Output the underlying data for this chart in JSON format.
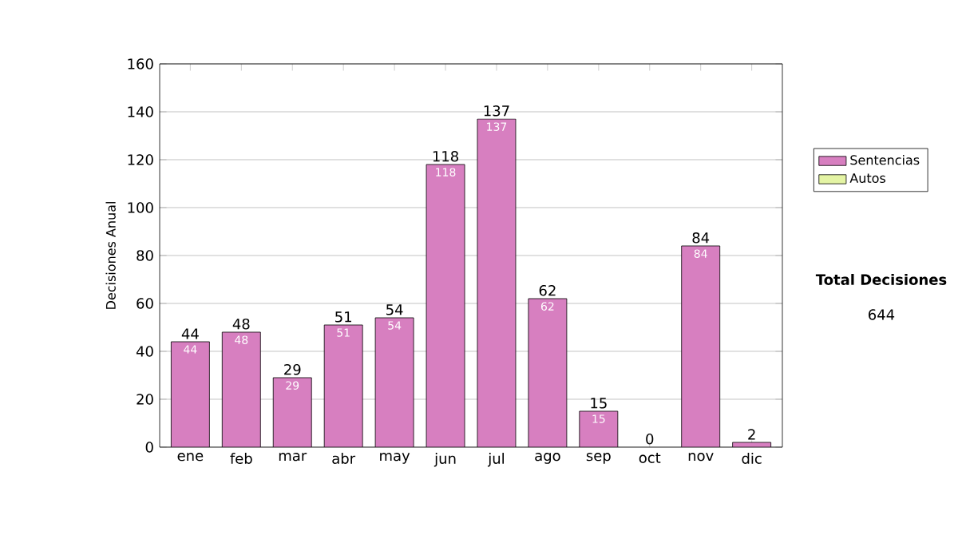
{
  "chart_data": {
    "type": "bar",
    "stacked": true,
    "ylabel": "Decisiones Anual",
    "categories": [
      "ene",
      "feb",
      "mar",
      "abr",
      "may",
      "jun",
      "jul",
      "ago",
      "sep",
      "oct",
      "nov",
      "dic"
    ],
    "series": [
      {
        "name": "Sentencias",
        "color": "#d77fc0",
        "values": [
          44,
          48,
          29,
          51,
          54,
          118,
          137,
          62,
          15,
          0,
          84,
          2
        ],
        "value_labels": [
          "44",
          "48",
          "29",
          "51",
          "54",
          "118",
          "137",
          "62",
          "15",
          null,
          "84",
          null
        ]
      },
      {
        "name": "Autos",
        "color": "#e4f4a4",
        "values": [
          0,
          0,
          0,
          0,
          0,
          0,
          0,
          0,
          0,
          0,
          0,
          0
        ]
      }
    ],
    "totals": [
      "44",
      "48",
      "29",
      "51",
      "54",
      "118",
      "137",
      "62",
      "15",
      "0",
      "84",
      "2"
    ],
    "ylim": [
      0,
      160
    ],
    "yticks": [
      0,
      20,
      40,
      60,
      80,
      100,
      120,
      140,
      160
    ],
    "grid": "y",
    "legend": "right",
    "annotations": [
      "Total Decisiones",
      "644"
    ]
  }
}
